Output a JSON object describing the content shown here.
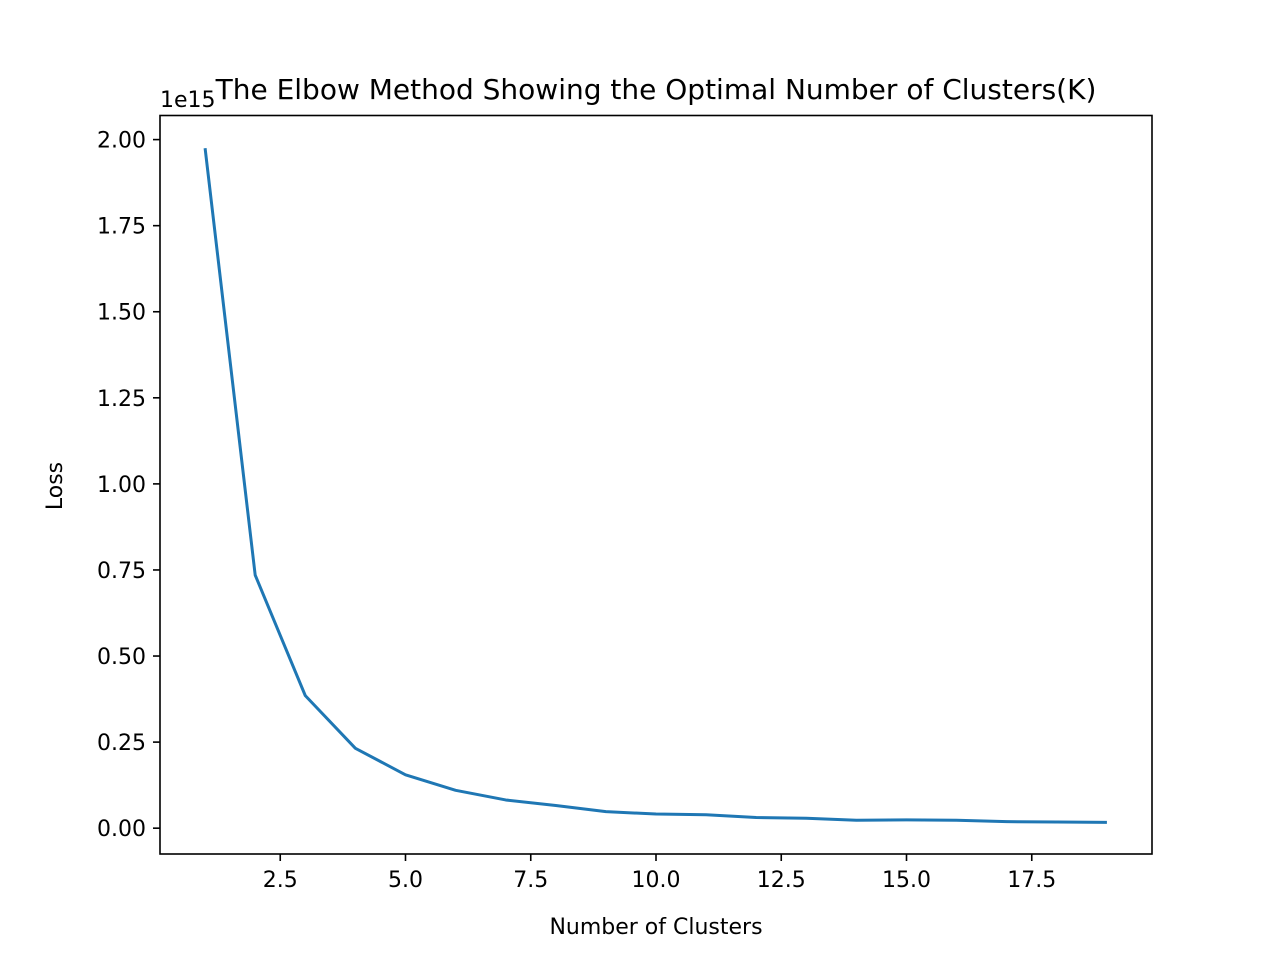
{
  "chart_data": {
    "type": "line",
    "title": "The Elbow Method Showing the Optimal Number of Clusters(K)",
    "xlabel": "Number of Clusters",
    "ylabel": "Loss",
    "y_offset_label": "1e15",
    "xlim": [
      0.1,
      19.9
    ],
    "ylim": [
      -0.075,
      2.07
    ],
    "x_ticks": [
      2.5,
      5.0,
      7.5,
      10.0,
      12.5,
      15.0,
      17.5
    ],
    "x_tick_labels": [
      "2.5",
      "5.0",
      "7.5",
      "10.0",
      "12.5",
      "15.0",
      "17.5"
    ],
    "y_ticks": [
      0.0,
      0.25,
      0.5,
      0.75,
      1.0,
      1.25,
      1.5,
      1.75,
      2.0
    ],
    "y_tick_labels": [
      "0.00",
      "0.25",
      "0.50",
      "0.75",
      "1.00",
      "1.25",
      "1.50",
      "1.75",
      "2.00"
    ],
    "grid": false,
    "series": [
      {
        "color": "#1f77b4",
        "x": [
          1,
          2,
          3,
          4,
          5,
          6,
          7,
          8,
          9,
          10,
          11,
          12,
          13,
          14,
          15,
          16,
          17,
          18,
          19
        ],
        "y": [
          1.975,
          0.735,
          0.385,
          0.232,
          0.155,
          0.11,
          0.082,
          0.066,
          0.048,
          0.041,
          0.039,
          0.031,
          0.029,
          0.023,
          0.024,
          0.023,
          0.019,
          0.018,
          0.017
        ]
      }
    ]
  }
}
